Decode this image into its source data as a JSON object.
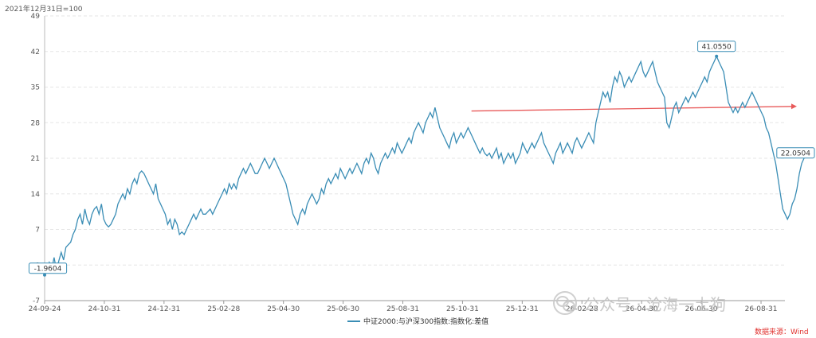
{
  "chart_data": {
    "type": "line",
    "unit_note": "2021年12月31日=100",
    "y_ticks": [
      -7,
      0,
      7,
      14,
      21,
      28,
      35,
      42,
      49
    ],
    "ylim": [
      -7,
      49
    ],
    "x_ticks": [
      "24-09-24",
      "24-10-31",
      "24-12-31",
      "25-02-28",
      "25-04-30",
      "25-06-30",
      "25-08-31",
      "25-10-31",
      "25-12-31",
      "26-02-28",
      "26-04-30",
      "26-06-30",
      "26-08-31"
    ],
    "grid": "horizontal",
    "legend_position": "bottom",
    "series": [
      {
        "name": "中证2000:与沪深300指数:指数化:差值",
        "color": "#3a8db5",
        "x_start": 0,
        "x_end": 12.8,
        "values": [
          -1.96,
          -1.2,
          0.5,
          -0.8,
          1.5,
          -1,
          0.8,
          2.5,
          1,
          3.5,
          4,
          4.5,
          6,
          7,
          9,
          10,
          8,
          11,
          9,
          8,
          10,
          11,
          11.5,
          10,
          12,
          9,
          8,
          7.5,
          8,
          9,
          10,
          12,
          13,
          14,
          13,
          15,
          14,
          16,
          17,
          16,
          18,
          18.5,
          18,
          17,
          16,
          15,
          14,
          16,
          13,
          12,
          11,
          10,
          8,
          9,
          7,
          9,
          8,
          6,
          6.5,
          6,
          7,
          8,
          9,
          10,
          9,
          10,
          11,
          10,
          10,
          10.5,
          11,
          10,
          11,
          12,
          13,
          14,
          15,
          14,
          16,
          15,
          16,
          15,
          17,
          18,
          19,
          18,
          19,
          20,
          19,
          18,
          18,
          19,
          20,
          21,
          20,
          19,
          20,
          21,
          20,
          19,
          18,
          17,
          16,
          14,
          12,
          10,
          9,
          8,
          10,
          11,
          10,
          12,
          13,
          14,
          13,
          12,
          13,
          15,
          14,
          16,
          17,
          16,
          17,
          18,
          17,
          19,
          18,
          17,
          18,
          19,
          18,
          19,
          20,
          19,
          18,
          20,
          21,
          20,
          22,
          21,
          19,
          18,
          20,
          21,
          22,
          21,
          22,
          23,
          22,
          24,
          23,
          22,
          23,
          24,
          25,
          24,
          26,
          27,
          28,
          27,
          26,
          28,
          29,
          30,
          29,
          31,
          29,
          27,
          26,
          25,
          24,
          23,
          25,
          26,
          24,
          25,
          26,
          25,
          26,
          27,
          26,
          25,
          24,
          23,
          22,
          23,
          22,
          21.5,
          22,
          21,
          22,
          23,
          21,
          22,
          20,
          21,
          22,
          21,
          22,
          20,
          21,
          22,
          24,
          23,
          22,
          23,
          24,
          23,
          24,
          25,
          26,
          24,
          23,
          22,
          21,
          20,
          22,
          23,
          24,
          22,
          23,
          24,
          23,
          22,
          24,
          25,
          24,
          23,
          24,
          25,
          26,
          25,
          24,
          28,
          30,
          32,
          34,
          33,
          34,
          32,
          35,
          37,
          36,
          38,
          37,
          35,
          36,
          37,
          36,
          37,
          38,
          39,
          40,
          38,
          37,
          38,
          39,
          40,
          38,
          36,
          35,
          34,
          33,
          28,
          27,
          29,
          31,
          32,
          30,
          31,
          32,
          33,
          32,
          33,
          34,
          33,
          34,
          35,
          36,
          37,
          36,
          38,
          39,
          40,
          41.06,
          40,
          39,
          38,
          35,
          32,
          31,
          30,
          31,
          30,
          31,
          32,
          31,
          32,
          33,
          34,
          33,
          32,
          31,
          30,
          29,
          27,
          26,
          24,
          22,
          20,
          17,
          14,
          11,
          10,
          9,
          10,
          12,
          13,
          15,
          18,
          20,
          21,
          22.05,
          22.05
        ]
      }
    ],
    "annotations": [
      {
        "label": "41.0550",
        "value": 41.055
      },
      {
        "label": "22.0504",
        "value": 22.0504
      },
      {
        "label": "-1.9604",
        "value": -1.9604
      }
    ],
    "trend_line": {
      "color": "#e85a5a",
      "start_value": 30.3,
      "end_value": 31.2
    },
    "source_text": "数据来源：Wind"
  },
  "watermark": {
    "text": "公众号 · 沧海一土狗"
  }
}
